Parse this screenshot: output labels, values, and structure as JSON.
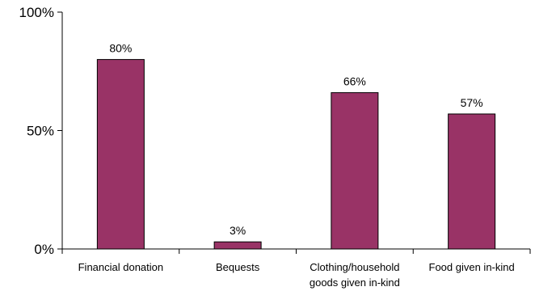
{
  "chart_data": {
    "type": "bar",
    "title": "",
    "xlabel": "",
    "ylabel": "",
    "categories": [
      [
        "Financial donation"
      ],
      [
        "Bequests"
      ],
      [
        "Clothing/household",
        "goods given in-kind"
      ],
      [
        "Food given in-kind"
      ]
    ],
    "values": [
      80,
      3,
      66,
      57
    ],
    "data_labels": [
      "80%",
      "3%",
      "66%",
      "57%"
    ],
    "ylim": [
      0,
      100
    ],
    "yticks": [
      0,
      50,
      100
    ],
    "ytick_labels": [
      "0%",
      "50%",
      "100%"
    ],
    "grid": false,
    "legend": "none",
    "bar_color": "#993366"
  }
}
